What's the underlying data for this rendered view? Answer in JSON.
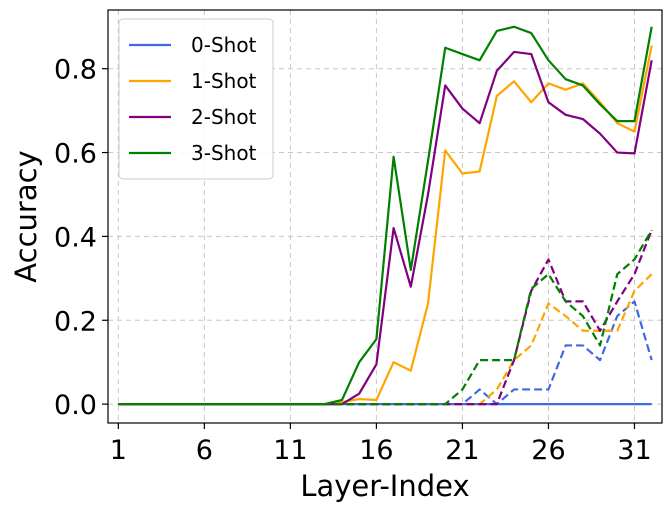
{
  "chart_data": {
    "type": "line",
    "title": "",
    "xlabel": "Layer-Index",
    "ylabel": "Accuracy",
    "xlim": [
      0.4,
      32.6
    ],
    "ylim": [
      -0.045,
      0.94
    ],
    "xticks": [
      1,
      6,
      11,
      16,
      21,
      26,
      31
    ],
    "yticks": [
      0.0,
      0.2,
      0.4,
      0.6,
      0.8
    ],
    "ytick_labels": [
      "0.0",
      "0.2",
      "0.4",
      "0.6",
      "0.8"
    ],
    "grid": true,
    "legend_position": "top-left",
    "x": [
      1,
      2,
      3,
      4,
      5,
      6,
      7,
      8,
      9,
      10,
      11,
      12,
      13,
      14,
      15,
      16,
      17,
      18,
      19,
      20,
      21,
      22,
      23,
      24,
      25,
      26,
      27,
      28,
      29,
      30,
      31,
      32
    ],
    "series": [
      {
        "name": "0-Shot",
        "color": "#4169e1",
        "style": "solid",
        "values": [
          0,
          0,
          0,
          0,
          0,
          0,
          0,
          0,
          0,
          0,
          0,
          0,
          0,
          0,
          0,
          0,
          0,
          0,
          0,
          0,
          0,
          0,
          0,
          0,
          0,
          0,
          0,
          0,
          0,
          0,
          0,
          0
        ]
      },
      {
        "name": "1-Shot",
        "color": "#ffa500",
        "style": "solid",
        "values": [
          0,
          0,
          0,
          0,
          0,
          0,
          0,
          0,
          0,
          0,
          0,
          0,
          0,
          0.005,
          0.012,
          0.01,
          0.1,
          0.08,
          0.24,
          0.605,
          0.55,
          0.555,
          0.735,
          0.77,
          0.72,
          0.765,
          0.75,
          0.765,
          0.72,
          0.67,
          0.65,
          0.855
        ]
      },
      {
        "name": "2-Shot",
        "color": "#800080",
        "style": "solid",
        "values": [
          0,
          0,
          0,
          0,
          0,
          0,
          0,
          0,
          0,
          0,
          0,
          0,
          0,
          0,
          0.025,
          0.095,
          0.42,
          0.28,
          0.5,
          0.76,
          0.705,
          0.67,
          0.795,
          0.84,
          0.835,
          0.72,
          0.69,
          0.68,
          0.645,
          0.6,
          0.598,
          0.82
        ]
      },
      {
        "name": "3-Shot",
        "color": "#008000",
        "style": "solid",
        "values": [
          0,
          0,
          0,
          0,
          0,
          0,
          0,
          0,
          0,
          0,
          0,
          0,
          0,
          0.01,
          0.1,
          0.155,
          0.59,
          0.32,
          0.58,
          0.85,
          0.835,
          0.82,
          0.89,
          0.9,
          0.885,
          0.82,
          0.775,
          0.76,
          0.715,
          0.675,
          0.675,
          0.9
        ]
      },
      {
        "color": "#4169e1",
        "style": "dashed",
        "values": [
          0,
          0,
          0,
          0,
          0,
          0,
          0,
          0,
          0,
          0,
          0,
          0,
          0,
          0,
          0,
          0,
          0,
          0,
          0,
          0,
          0,
          0.035,
          0,
          0.035,
          0.035,
          0.035,
          0.14,
          0.14,
          0.105,
          0.21,
          0.245,
          0.105
        ]
      },
      {
        "color": "#ffa500",
        "style": "dashed",
        "values": [
          0,
          0,
          0,
          0,
          0,
          0,
          0,
          0,
          0,
          0,
          0,
          0,
          0,
          0,
          0,
          0,
          0,
          0,
          0,
          0,
          0,
          0,
          0.035,
          0.105,
          0.14,
          0.24,
          0.21,
          0.175,
          0.175,
          0.175,
          0.27,
          0.31
        ]
      },
      {
        "color": "#800080",
        "style": "dashed",
        "values": [
          0,
          0,
          0,
          0,
          0,
          0,
          0,
          0,
          0,
          0,
          0,
          0,
          0,
          0,
          0,
          0,
          0,
          0,
          0,
          0,
          0,
          0,
          0,
          0.105,
          0.27,
          0.345,
          0.245,
          0.245,
          0.175,
          0.245,
          0.31,
          0.415
        ]
      },
      {
        "color": "#008000",
        "style": "dashed",
        "values": [
          0,
          0,
          0,
          0,
          0,
          0,
          0,
          0,
          0,
          0,
          0,
          0,
          0,
          0,
          0,
          0,
          0,
          0,
          0,
          0,
          0.035,
          0.105,
          0.105,
          0.105,
          0.275,
          0.31,
          0.245,
          0.21,
          0.14,
          0.31,
          0.345,
          0.415
        ]
      }
    ]
  }
}
